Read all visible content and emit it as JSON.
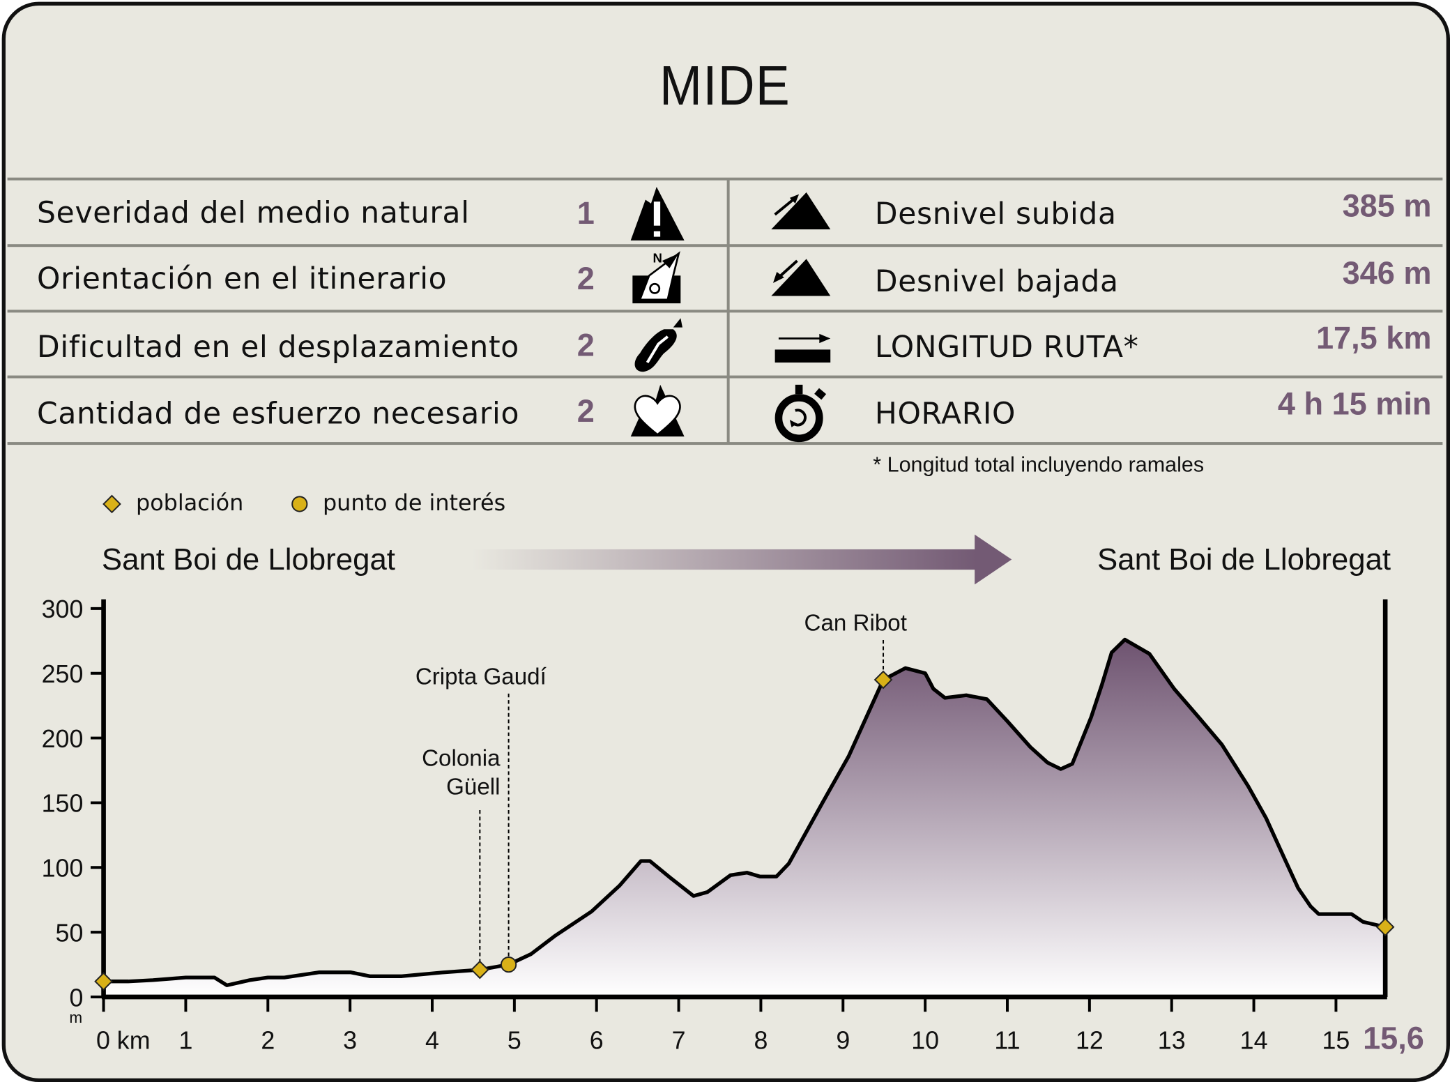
{
  "title": "MIDE",
  "mide": [
    {
      "label": "Severidad del medio natural",
      "value": "1",
      "icon": "warning-mountain-icon"
    },
    {
      "label": "Orientación en el itinerario",
      "value": "2",
      "icon": "compass-orientation-icon"
    },
    {
      "label": "Dificultad en el desplazamiento",
      "value": "2",
      "icon": "boot-sole-icon"
    },
    {
      "label": "Cantidad de esfuerzo necesario",
      "value": "2",
      "icon": "heart-mountain-icon"
    }
  ],
  "stats": [
    {
      "label": "Desnivel subida",
      "value": "385 m",
      "icon": "ascent-icon"
    },
    {
      "label": "Desnivel bajada",
      "value": "346 m",
      "icon": "descent-icon"
    },
    {
      "label": "LONGITUD RUTA*",
      "value": "17,5 km",
      "icon": "distance-icon"
    },
    {
      "label": "HORARIO",
      "value": "4 h 15 min",
      "icon": "stopwatch-icon"
    }
  ],
  "footnote": "* Longitud total incluyendo ramales",
  "legend": {
    "town": "población",
    "poi": "punto de interés"
  },
  "route": {
    "start": "Sant Boi de Llobregat",
    "end": "Sant Boi de Llobregat"
  },
  "colors": {
    "accent": "#735a74",
    "marker": "#d9b118",
    "background": "#e9e8e0"
  },
  "chart_data": {
    "type": "area",
    "xlabel": "km",
    "ylabel": "m",
    "xlim": [
      0,
      15.6
    ],
    "ylim": [
      0,
      300
    ],
    "x_ticks": [
      "0 km",
      "1",
      "2",
      "3",
      "4",
      "5",
      "6",
      "7",
      "8",
      "9",
      "10",
      "11",
      "12",
      "13",
      "14",
      "15"
    ],
    "x_end_label": "15,6",
    "y_ticks": [
      "0",
      "50",
      "100",
      "150",
      "200",
      "250",
      "300"
    ],
    "profile": [
      [
        0,
        12
      ],
      [
        0.3,
        12
      ],
      [
        0.6,
        13
      ],
      [
        1.0,
        15
      ],
      [
        1.35,
        15
      ],
      [
        1.5,
        9
      ],
      [
        1.78,
        13
      ],
      [
        2.0,
        15
      ],
      [
        2.2,
        15
      ],
      [
        2.62,
        19
      ],
      [
        3.01,
        19
      ],
      [
        3.24,
        16
      ],
      [
        3.63,
        16
      ],
      [
        4.14,
        19
      ],
      [
        4.58,
        21
      ],
      [
        4.93,
        25
      ],
      [
        5.2,
        33
      ],
      [
        5.49,
        47
      ],
      [
        5.94,
        66
      ],
      [
        6.28,
        86
      ],
      [
        6.54,
        105
      ],
      [
        6.65,
        105
      ],
      [
        6.9,
        92
      ],
      [
        7.18,
        78
      ],
      [
        7.35,
        81
      ],
      [
        7.63,
        94
      ],
      [
        7.83,
        96
      ],
      [
        7.99,
        93
      ],
      [
        8.19,
        93
      ],
      [
        8.34,
        103
      ],
      [
        8.75,
        150
      ],
      [
        9.07,
        186
      ],
      [
        9.49,
        245
      ],
      [
        9.76,
        254
      ],
      [
        10.0,
        250
      ],
      [
        10.1,
        238
      ],
      [
        10.24,
        231
      ],
      [
        10.5,
        233
      ],
      [
        10.75,
        230
      ],
      [
        11.0,
        213
      ],
      [
        11.28,
        193
      ],
      [
        11.49,
        181
      ],
      [
        11.65,
        176
      ],
      [
        11.79,
        180
      ],
      [
        12.02,
        216
      ],
      [
        12.15,
        241
      ],
      [
        12.27,
        266
      ],
      [
        12.43,
        276
      ],
      [
        12.73,
        265
      ],
      [
        13.03,
        238
      ],
      [
        13.33,
        216
      ],
      [
        13.61,
        195
      ],
      [
        13.93,
        163
      ],
      [
        14.15,
        138
      ],
      [
        14.38,
        106
      ],
      [
        14.54,
        84
      ],
      [
        14.69,
        70
      ],
      [
        14.79,
        64
      ],
      [
        15.19,
        64
      ],
      [
        15.33,
        58
      ],
      [
        15.6,
        54
      ]
    ],
    "points": [
      {
        "name": "",
        "type": "town",
        "km": 0,
        "m": 12
      },
      {
        "name": "Colonia Güell",
        "type": "town",
        "km": 4.58,
        "m": 21
      },
      {
        "name": "Cripta Gaudí",
        "type": "poi",
        "km": 4.93,
        "m": 25
      },
      {
        "name": "Can Ribot",
        "type": "town",
        "km": 9.49,
        "m": 245
      },
      {
        "name": "",
        "type": "town",
        "km": 15.6,
        "m": 54
      }
    ]
  }
}
